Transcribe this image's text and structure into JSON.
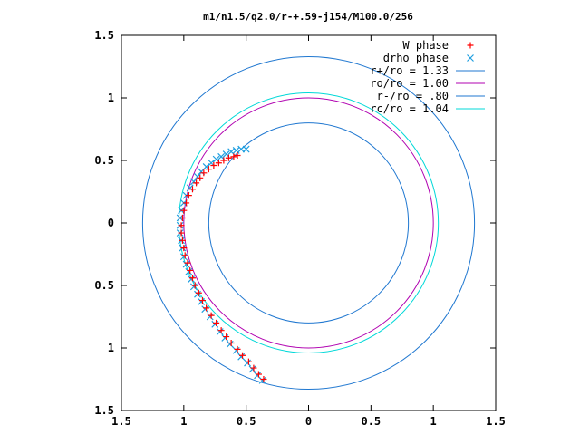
{
  "chart_data": {
    "type": "scatter",
    "title": "m1/n1.5/q2.0/r-+.59-j154/M100.0/256",
    "xlabel": "",
    "ylabel": "",
    "xlim": [
      -1.5,
      1.5
    ],
    "ylim": [
      -1.5,
      1.5
    ],
    "xticks": [
      "1.5",
      "1",
      "0.5",
      "0",
      "0.5",
      "1",
      "1.5"
    ],
    "xtick_values": [
      -1.5,
      -1,
      -0.5,
      0,
      0.5,
      1,
      1.5
    ],
    "yticks": [
      "1.5",
      "1",
      "0.5",
      "0",
      "0.5",
      "1",
      "1.5"
    ],
    "ytick_values": [
      1.5,
      1,
      0.5,
      0,
      -0.5,
      -1,
      -1.5
    ],
    "grid": false,
    "legend_position": "top-right",
    "circles": [
      {
        "name": "r+/ro = 1.33",
        "r": 1.33,
        "color": "#1f77d0"
      },
      {
        "name": "ro/ro = 1.00",
        "r": 1.0,
        "color": "#b000b0"
      },
      {
        "name": "r-/ro = .80",
        "r": 0.8,
        "color": "#1f77d0"
      },
      {
        "name": "rc/ro = 1.04",
        "r": 1.04,
        "color": "#00d8d8"
      }
    ],
    "series": [
      {
        "name": "W phase",
        "marker": "+",
        "color": "#ff0000",
        "points": [
          [
            -0.57,
            0.54
          ],
          [
            -0.6,
            0.53
          ],
          [
            -0.64,
            0.52
          ],
          [
            -0.68,
            0.5
          ],
          [
            -0.72,
            0.48
          ],
          [
            -0.76,
            0.46
          ],
          [
            -0.8,
            0.43
          ],
          [
            -0.84,
            0.4
          ],
          [
            -0.87,
            0.36
          ],
          [
            -0.9,
            0.32
          ],
          [
            -0.93,
            0.27
          ],
          [
            -0.96,
            0.22
          ],
          [
            -0.98,
            0.16
          ],
          [
            -1.0,
            0.1
          ],
          [
            -1.01,
            0.04
          ],
          [
            -1.02,
            -0.02
          ],
          [
            -1.02,
            -0.08
          ],
          [
            -1.01,
            -0.14
          ],
          [
            -1.0,
            -0.2
          ],
          [
            -0.99,
            -0.26
          ],
          [
            -0.97,
            -0.32
          ],
          [
            -0.95,
            -0.38
          ],
          [
            -0.93,
            -0.44
          ],
          [
            -0.91,
            -0.5
          ],
          [
            -0.88,
            -0.56
          ],
          [
            -0.85,
            -0.62
          ],
          [
            -0.82,
            -0.68
          ],
          [
            -0.78,
            -0.74
          ],
          [
            -0.74,
            -0.8
          ],
          [
            -0.7,
            -0.86
          ],
          [
            -0.66,
            -0.91
          ],
          [
            -0.62,
            -0.96
          ],
          [
            -0.57,
            -1.01
          ],
          [
            -0.53,
            -1.06
          ],
          [
            -0.48,
            -1.11
          ],
          [
            -0.44,
            -1.16
          ],
          [
            -0.4,
            -1.21
          ],
          [
            -0.36,
            -1.25
          ]
        ]
      },
      {
        "name": "drho phase",
        "marker": "x",
        "color": "#1f9fe0",
        "points": [
          [
            -0.5,
            0.59
          ],
          [
            -0.54,
            0.59
          ],
          [
            -0.58,
            0.58
          ],
          [
            -0.62,
            0.57
          ],
          [
            -0.66,
            0.55
          ],
          [
            -0.7,
            0.53
          ],
          [
            -0.74,
            0.51
          ],
          [
            -0.78,
            0.48
          ],
          [
            -0.82,
            0.45
          ],
          [
            -0.86,
            0.41
          ],
          [
            -0.89,
            0.37
          ],
          [
            -0.92,
            0.33
          ],
          [
            -0.95,
            0.28
          ],
          [
            -0.98,
            0.22
          ],
          [
            -1.0,
            0.16
          ],
          [
            -1.02,
            0.1
          ],
          [
            -1.03,
            0.04
          ],
          [
            -1.03,
            -0.02
          ],
          [
            -1.03,
            -0.08
          ],
          [
            -1.02,
            -0.14
          ],
          [
            -1.01,
            -0.2
          ],
          [
            -1.0,
            -0.27
          ],
          [
            -0.98,
            -0.33
          ],
          [
            -0.96,
            -0.39
          ],
          [
            -0.94,
            -0.45
          ],
          [
            -0.92,
            -0.51
          ],
          [
            -0.89,
            -0.57
          ],
          [
            -0.86,
            -0.63
          ],
          [
            -0.83,
            -0.69
          ],
          [
            -0.79,
            -0.75
          ],
          [
            -0.75,
            -0.81
          ],
          [
            -0.71,
            -0.87
          ],
          [
            -0.67,
            -0.92
          ],
          [
            -0.63,
            -0.97
          ],
          [
            -0.58,
            -1.02
          ],
          [
            -0.54,
            -1.07
          ],
          [
            -0.49,
            -1.12
          ],
          [
            -0.45,
            -1.17
          ],
          [
            -0.41,
            -1.22
          ],
          [
            -0.37,
            -1.26
          ]
        ]
      }
    ]
  }
}
